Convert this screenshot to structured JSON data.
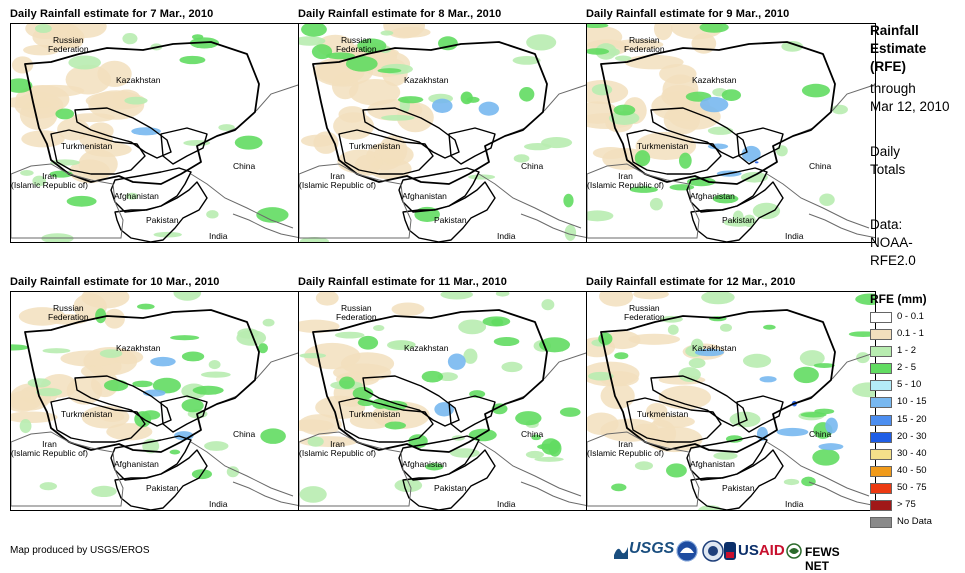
{
  "panels": [
    {
      "title": "Daily Rainfall estimate for 7 Mar., 2010"
    },
    {
      "title": "Daily Rainfall estimate for 8 Mar., 2010"
    },
    {
      "title": "Daily Rainfall estimate for 9 Mar., 2010"
    },
    {
      "title": "Daily Rainfall estimate for 10 Mar., 2010"
    },
    {
      "title": "Daily Rainfall estimate for 11 Mar., 2010"
    },
    {
      "title": "Daily Rainfall estimate for 12 Mar., 2010"
    }
  ],
  "labels": {
    "russia": "Russian\nFederation",
    "kazakhstan": "Kazakhstan",
    "turkmenistan": "Turkmenistan",
    "iran": "Iran\n(Islamic Republic of)",
    "afghanistan": "Afghanistan",
    "pakistan": "Pakistan",
    "china": "China",
    "india": "India"
  },
  "sidebar": {
    "title_1": "Rainfall",
    "title_2": "Estimate",
    "title_3": "(RFE)",
    "through": "through",
    "date": "Mar 12, 2010",
    "daily": "Daily",
    "totals": "Totals",
    "data_label": "Data:",
    "data_1": "NOAA-",
    "data_2": "RFE2.0"
  },
  "legend": {
    "title": "RFE (mm)",
    "items": [
      {
        "label": "0 - 0.1",
        "color": "#ffffff"
      },
      {
        "label": "0.1 - 1",
        "color": "#f2dfbd"
      },
      {
        "label": "1 - 2",
        "color": "#b8ecb0"
      },
      {
        "label": "2 - 5",
        "color": "#62dc62"
      },
      {
        "label": "5 - 10",
        "color": "#b4ecf8"
      },
      {
        "label": "10 - 15",
        "color": "#78b8f0"
      },
      {
        "label": "15 - 20",
        "color": "#4c8ef0"
      },
      {
        "label": "20 - 30",
        "color": "#1f5ee6"
      },
      {
        "label": "30 - 40",
        "color": "#f4e08a"
      },
      {
        "label": "40 - 50",
        "color": "#f09a1a"
      },
      {
        "label": "50 - 75",
        "color": "#ec3a12"
      },
      {
        "label": "> 75",
        "color": "#a01818"
      },
      {
        "label": "No Data",
        "color": "#8a8a8a"
      }
    ]
  },
  "footer": {
    "credit": "Map produced by USGS/EROS",
    "logos": {
      "usgs": "USGS",
      "usaid_prefix": "US",
      "usaid_suffix": "AID",
      "fews": "FEWS NET"
    }
  },
  "rain_intensity": [
    {
      "tan": 0.55,
      "lightgreen": 0.35,
      "green": 0.25,
      "blue": 0.05,
      "dark": 0.02,
      "orange": 0.01
    },
    {
      "tan": 0.5,
      "lightgreen": 0.4,
      "green": 0.35,
      "blue": 0.1,
      "dark": 0.04,
      "orange": 0.01
    },
    {
      "tan": 0.45,
      "lightgreen": 0.45,
      "green": 0.35,
      "blue": 0.18,
      "dark": 0.08,
      "orange": 0.01
    },
    {
      "tan": 0.45,
      "lightgreen": 0.45,
      "green": 0.45,
      "blue": 0.12,
      "dark": 0.04,
      "orange": 0.0
    },
    {
      "tan": 0.3,
      "lightgreen": 0.55,
      "green": 0.65,
      "blue": 0.1,
      "dark": 0.03,
      "orange": 0.01
    },
    {
      "tan": 0.4,
      "lightgreen": 0.5,
      "green": 0.45,
      "blue": 0.25,
      "dark": 0.12,
      "orange": 0.01
    }
  ]
}
